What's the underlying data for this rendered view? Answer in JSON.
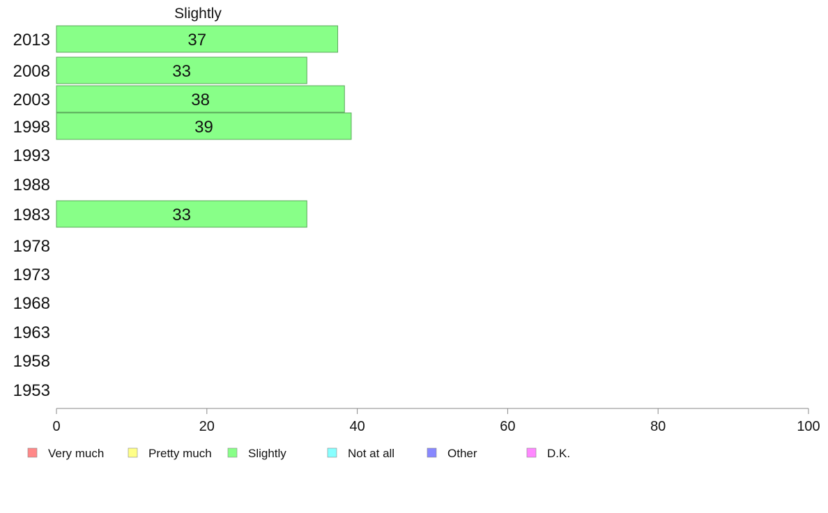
{
  "chart_data": {
    "type": "bar",
    "orientation": "horizontal",
    "title": "Slightly",
    "categories": [
      "2013",
      "2008",
      "2003",
      "1998",
      "1993",
      "1988",
      "1983",
      "1978",
      "1973",
      "1968",
      "1963",
      "1958",
      "1953"
    ],
    "series": [
      {
        "name": "Slightly",
        "color": "#88ff88",
        "values": [
          37.4,
          33.3,
          38.3,
          39.2,
          null,
          null,
          33.3,
          null,
          null,
          null,
          null,
          null,
          null
        ],
        "labels": [
          "37",
          "33",
          "38",
          "39",
          "",
          "",
          "33",
          "",
          "",
          "",
          "",
          "",
          ""
        ]
      }
    ],
    "xlim": [
      0,
      100
    ],
    "xticks": [
      "0",
      "20",
      "40",
      "60",
      "80",
      "100"
    ],
    "grid": false,
    "legend": {
      "placement": "bottom",
      "items": [
        {
          "label": "Very much",
          "color": "#ff8888"
        },
        {
          "label": "Pretty much",
          "color": "#ffff88"
        },
        {
          "label": "Slightly",
          "color": "#88ff88"
        },
        {
          "label": "Not at all",
          "color": "#88ffff"
        },
        {
          "label": "Other",
          "color": "#8888ff"
        },
        {
          "label": "D.K.",
          "color": "#ff88ff"
        }
      ]
    }
  }
}
